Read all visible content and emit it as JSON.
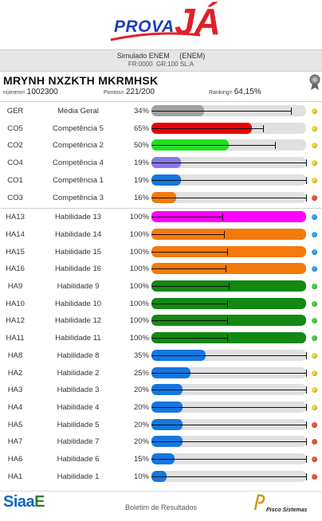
{
  "brand": {
    "logo_prova": "PROVA",
    "logo_ja": "JÁ"
  },
  "exam": {
    "title": "Simulado ENEM     (ENEM)",
    "meta": "FR:0000  GR:100 SL:A"
  },
  "student": {
    "name": "MRYNH NXZKTH MKRMHSK",
    "numero_label": "número=",
    "numero_value": "1002300",
    "pontos_label": "Pontos=",
    "pontos_value": "221/200",
    "ranking_label": "Ranking=",
    "ranking_value": "64,15%"
  },
  "colors": {
    "gray": "#a0a0a0",
    "red": "#ee0000",
    "green_light": "#22dd22",
    "purple": "#8878e8",
    "blue": "#1477e0",
    "orange": "#f47a0b",
    "magenta": "#ff00ff",
    "green_dark": "#138813",
    "track": "#e0e0e0",
    "dot_yellow": "#f5d43a",
    "dot_red": "#e85a3a",
    "dot_blue": "#3aa8e8",
    "dot_green": "#4ccf4c"
  },
  "rows": [
    {
      "code": "GER",
      "label": "Média Geral",
      "pct": "34%",
      "value": 34,
      "color": "#a0a0a0",
      "ref": 90,
      "dot": "yellow"
    },
    {
      "code": "CO5",
      "label": "Competência 5",
      "pct": "65%",
      "value": 65,
      "color": "#ee0000",
      "ref": 72,
      "dot": "yellow"
    },
    {
      "code": "CO2",
      "label": "Competência 2",
      "pct": "50%",
      "value": 50,
      "color": "#22dd22",
      "ref": 80,
      "dot": "yellow"
    },
    {
      "code": "CO4",
      "label": "Competência 4",
      "pct": "19%",
      "value": 19,
      "color": "#8878e8",
      "ref": 100,
      "dot": "yellow"
    },
    {
      "code": "CO1",
      "label": "Competência 1",
      "pct": "19%",
      "value": 19,
      "color": "#1477e0",
      "ref": 100,
      "dot": "yellow"
    },
    {
      "code": "CO3",
      "label": "Competência 3",
      "pct": "16%",
      "value": 16,
      "color": "#f47a0b",
      "ref": 100,
      "dot": "red"
    },
    {
      "code": "HA13",
      "label": "Habilidade 13",
      "pct": "100%",
      "value": 100,
      "color": "#ff00ff",
      "ref": 46,
      "dot": "blue"
    },
    {
      "code": "HA14",
      "label": "Habilidade 14",
      "pct": "100%",
      "value": 100,
      "color": "#f47a0b",
      "ref": 47,
      "dot": "blue"
    },
    {
      "code": "HA15",
      "label": "Habilidade 15",
      "pct": "100%",
      "value": 100,
      "color": "#f47a0b",
      "ref": 49,
      "dot": "blue"
    },
    {
      "code": "HA16",
      "label": "Habilidade 16",
      "pct": "100%",
      "value": 100,
      "color": "#f47a0b",
      "ref": 48,
      "dot": "blue"
    },
    {
      "code": "HA9",
      "label": "Habilidade 9",
      "pct": "100%",
      "value": 100,
      "color": "#138813",
      "ref": 50,
      "dot": "green"
    },
    {
      "code": "HA10",
      "label": "Habilidade 10",
      "pct": "100%",
      "value": 100,
      "color": "#138813",
      "ref": 49,
      "dot": "green"
    },
    {
      "code": "HA12",
      "label": "Habilidade 12",
      "pct": "100%",
      "value": 100,
      "color": "#138813",
      "ref": 49,
      "dot": "green"
    },
    {
      "code": "HA11",
      "label": "Habilidade 11",
      "pct": "100%",
      "value": 100,
      "color": "#138813",
      "ref": 49,
      "dot": "green"
    },
    {
      "code": "HA8",
      "label": "Habilidade 8",
      "pct": "35%",
      "value": 35,
      "color": "#1477e0",
      "ref": 100,
      "dot": "yellow"
    },
    {
      "code": "HA2",
      "label": "Habilidade 2",
      "pct": "25%",
      "value": 25,
      "color": "#1477e0",
      "ref": 100,
      "dot": "yellow"
    },
    {
      "code": "HA3",
      "label": "Habilidade 3",
      "pct": "20%",
      "value": 20,
      "color": "#1477e0",
      "ref": 100,
      "dot": "yellow"
    },
    {
      "code": "HA4",
      "label": "Habilidade 4",
      "pct": "20%",
      "value": 20,
      "color": "#1477e0",
      "ref": 100,
      "dot": "yellow"
    },
    {
      "code": "HA5",
      "label": "Habilidade 5",
      "pct": "20%",
      "value": 20,
      "color": "#1477e0",
      "ref": 100,
      "dot": "red"
    },
    {
      "code": "HA7",
      "label": "Habilidade 7",
      "pct": "20%",
      "value": 20,
      "color": "#1477e0",
      "ref": 100,
      "dot": "red"
    },
    {
      "code": "HA6",
      "label": "Habilidade 6",
      "pct": "15%",
      "value": 15,
      "color": "#1477e0",
      "ref": 100,
      "dot": "red"
    },
    {
      "code": "HA1",
      "label": "Habilidade 1",
      "pct": "10%",
      "value": 10,
      "color": "#1477e0",
      "ref": 100,
      "dot": "red"
    }
  ],
  "footer": {
    "siaae_a": "Siaa",
    "siaae_b": "E",
    "boletim": "Boletim de Resultados",
    "pisco": "Pisco Sistemas"
  }
}
